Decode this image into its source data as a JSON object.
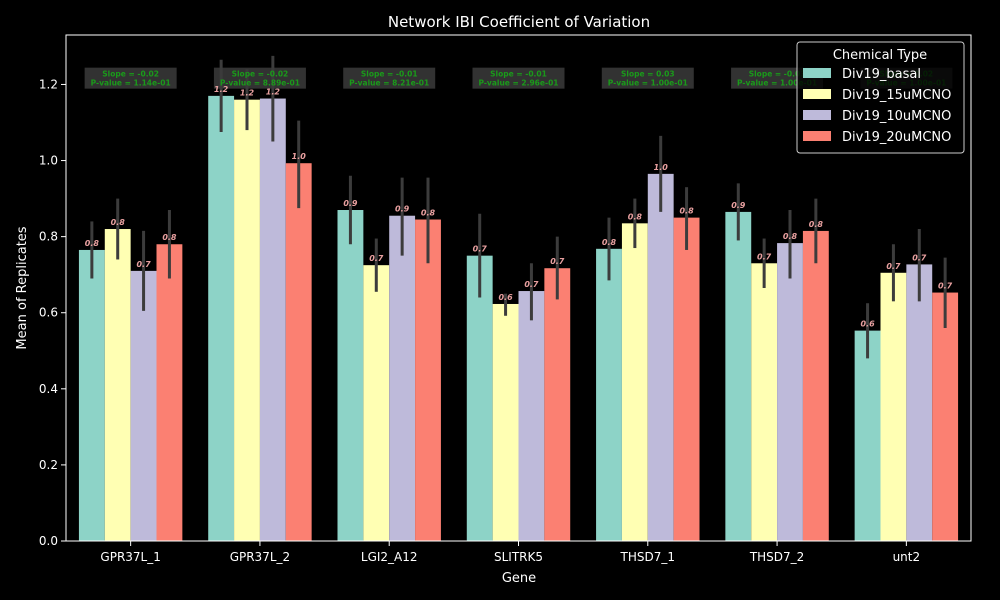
{
  "chart_data": {
    "type": "bar",
    "title": "Network IBI Coefficient of Variation",
    "xlabel": "Gene",
    "ylabel": "Mean of Replicates",
    "ylim": [
      0,
      1.33
    ],
    "yticks": [
      "0.0",
      "0.2",
      "0.4",
      "0.6",
      "0.8",
      "1.0",
      "1.2"
    ],
    "categories": [
      "GPR37L_1",
      "GPR37L_2",
      "LGI2_A12",
      "SLITRK5",
      "THSD7_1",
      "THSD7_2",
      "unt2"
    ],
    "legend": {
      "title": "Chemical Type",
      "position": "top-right"
    },
    "colors": [
      "#8dd3c7",
      "#ffffb3",
      "#bebada",
      "#fb8072"
    ],
    "series": [
      {
        "name": "Div19_basal",
        "values": [
          0.765,
          1.17,
          0.87,
          0.75,
          0.768,
          0.865,
          0.553
        ],
        "err_low": [
          0.69,
          1.075,
          0.78,
          0.64,
          0.685,
          0.79,
          0.48
        ],
        "err_high": [
          0.84,
          1.265,
          0.96,
          0.86,
          0.85,
          0.94,
          0.625
        ],
        "labels": [
          "0.8",
          "1.2",
          "0.9",
          "0.7",
          "0.8",
          "0.9",
          "0.6"
        ]
      },
      {
        "name": "Div19_15uMCNO",
        "values": [
          0.82,
          1.16,
          0.725,
          0.623,
          0.835,
          0.73,
          0.705
        ],
        "err_low": [
          0.74,
          1.08,
          0.655,
          0.592,
          0.77,
          0.665,
          0.63
        ],
        "err_high": [
          0.9,
          1.24,
          0.795,
          0.65,
          0.9,
          0.795,
          0.78
        ],
        "labels": [
          "0.8",
          "1.2",
          "0.7",
          "0.6",
          "0.8",
          "0.7",
          "0.7"
        ]
      },
      {
        "name": "Div19_10uMCNO",
        "values": [
          0.71,
          1.163,
          0.855,
          0.657,
          0.965,
          0.783,
          0.727
        ],
        "err_low": [
          0.605,
          1.05,
          0.75,
          0.58,
          0.865,
          0.69,
          0.63
        ],
        "err_high": [
          0.815,
          1.275,
          0.955,
          0.73,
          1.065,
          0.87,
          0.82
        ],
        "labels": [
          "0.7",
          "1.2",
          "0.9",
          "0.7",
          "1.0",
          "0.8",
          "0.7"
        ]
      },
      {
        "name": "Div19_20uMCNO",
        "values": [
          0.78,
          0.993,
          0.845,
          0.717,
          0.85,
          0.815,
          0.653
        ],
        "err_low": [
          0.69,
          0.875,
          0.73,
          0.635,
          0.765,
          0.73,
          0.56
        ],
        "err_high": [
          0.87,
          1.105,
          0.955,
          0.8,
          0.93,
          0.9,
          0.745
        ],
        "labels": [
          "0.8",
          "1.0",
          "0.8",
          "0.7",
          "0.8",
          "0.8",
          "0.7"
        ]
      }
    ],
    "annotations": [
      {
        "line1": "Slope = -0.02",
        "line2": "P-value = 1.14e-01",
        "y": 1.21
      },
      {
        "line1": "Slope = -0.02",
        "line2": "P-value = 8.89e-01",
        "y": 1.21
      },
      {
        "line1": "Slope = -0.01",
        "line2": "P-value = 8.21e-01",
        "y": 1.21
      },
      {
        "line1": "Slope = -0.01",
        "line2": "P-value = 2.96e-01",
        "y": 1.21
      },
      {
        "line1": "Slope = 0.03",
        "line2": "P-value = 1.00e-01",
        "y": 1.21
      },
      {
        "line1": "Slope = -0.03",
        "line2": "P-value = 1.00e-01",
        "y": 1.21
      },
      {
        "line1": "Slope = 0.02",
        "line2": "P-value = 1.00e-01",
        "y": 1.21
      }
    ]
  }
}
